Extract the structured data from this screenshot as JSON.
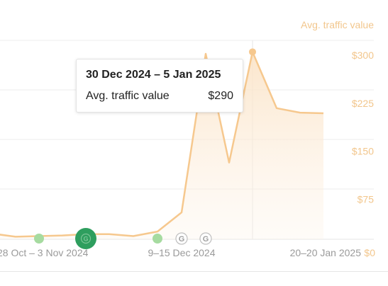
{
  "chart_data": {
    "type": "area",
    "ylabel": "Avg. traffic value",
    "y_unit": "$",
    "ylim": [
      0,
      300
    ],
    "yticks": [
      "$0",
      "$75",
      "$150",
      "$225",
      "$300"
    ],
    "ytick_values": [
      0,
      75,
      150,
      225,
      300
    ],
    "xtick_labels": [
      "28 Oct – 3 Nov 2024",
      "9–15 Dec 2024",
      "20–20 Jan 2025"
    ],
    "series": [
      {
        "color": "#f6c88e",
        "values": [
          8,
          4,
          5,
          6,
          8,
          8,
          5,
          12,
          42,
          290,
          120,
          293,
          205,
          198,
          197
        ]
      }
    ],
    "markers": [
      {
        "kind": "dot",
        "color": "#a6dba0"
      },
      {
        "kind": "google-big",
        "color": "#2e9e5e",
        "label": "G"
      },
      {
        "kind": "dot",
        "color": "#a6dba0"
      },
      {
        "kind": "google",
        "label": "G"
      },
      {
        "kind": "google",
        "label": "G"
      }
    ],
    "tooltip": {
      "title": "30 Dec 2024 – 5 Jan 2025",
      "label": "Avg. traffic value",
      "value": "$290"
    }
  }
}
